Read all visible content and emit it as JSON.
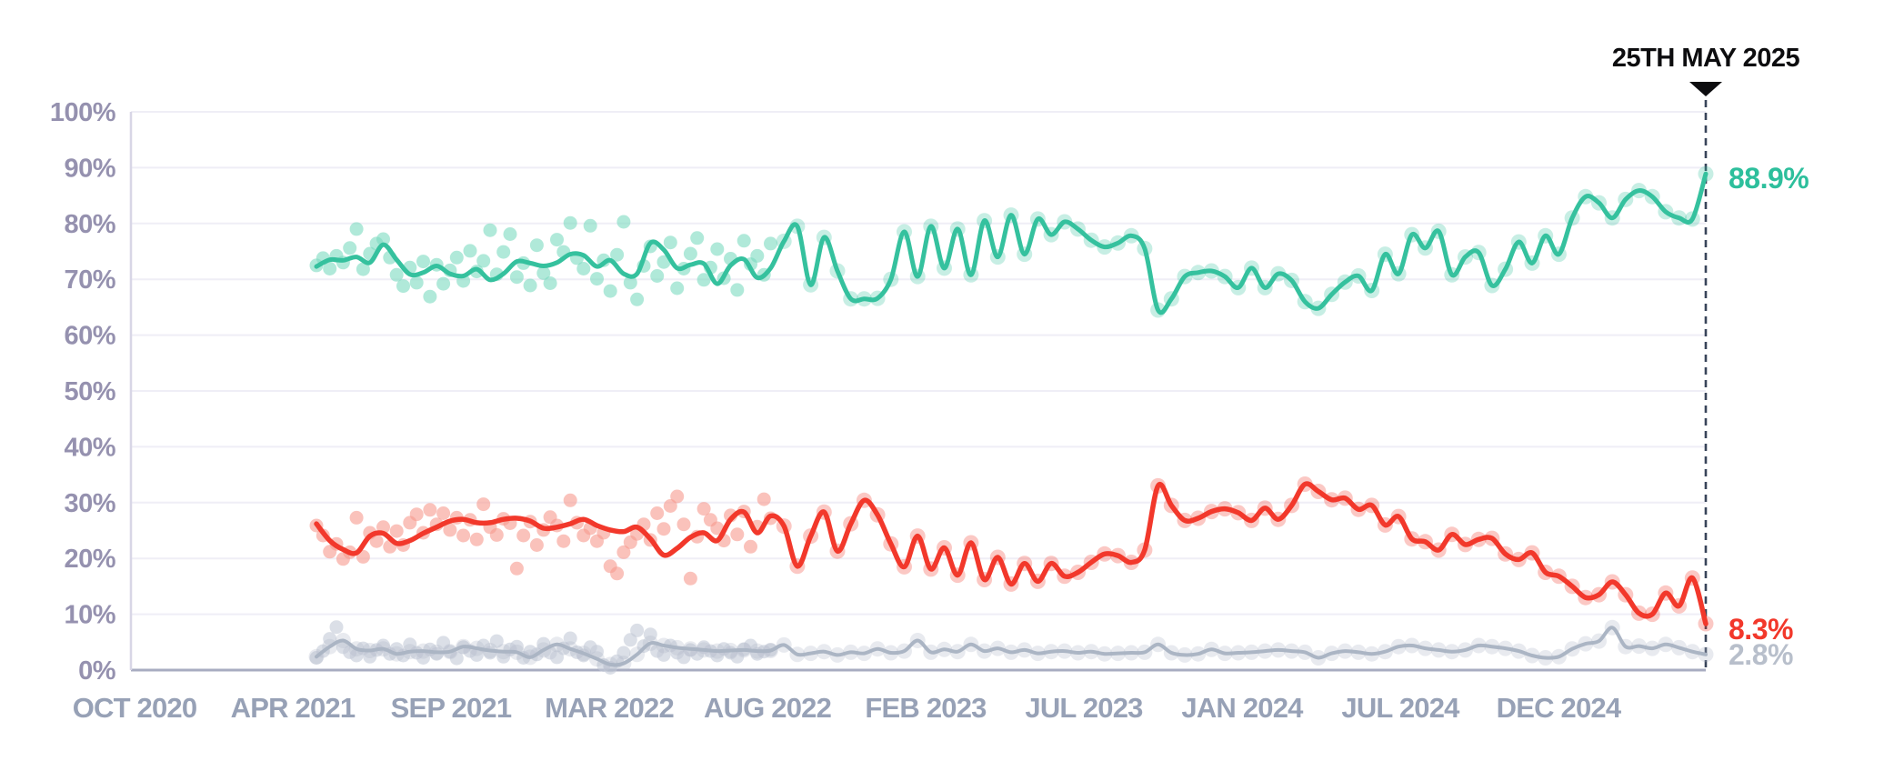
{
  "chart_data": {
    "type": "line",
    "title": "",
    "xlabel": "",
    "ylabel": "",
    "ylim": [
      0,
      100
    ],
    "grid": "horizontal",
    "x_ticks": [
      "OCT 2020",
      "APR 2021",
      "SEP 2021",
      "MAR 2022",
      "AUG 2022",
      "FEB 2023",
      "JUL 2023",
      "JAN 2024",
      "JUL 2024",
      "DEC 2024"
    ],
    "y_ticks": [
      "0%",
      "10%",
      "20%",
      "30%",
      "40%",
      "50%",
      "60%",
      "70%",
      "80%",
      "90%",
      "100%"
    ],
    "annotation": {
      "label": "25TH MAY 2025"
    },
    "series": [
      {
        "name": "teal-series",
        "color": "#35C19E",
        "scatter_color": "#7BDABF",
        "end_label": "88.9%",
        "end_label_color": "#2DBF9C",
        "trend": [
          72.3,
          73.5,
          73.4,
          74.0,
          73.0,
          76.2,
          73.5,
          70.9,
          71.2,
          72.4,
          71.0,
          70.6,
          71.8,
          69.9,
          71.0,
          73.2,
          72.9,
          72.4,
          73.0,
          74.5,
          74.3,
          72.3,
          73.4,
          71.0,
          71.0,
          76.5,
          75.3,
          72.0,
          72.6,
          72.8,
          69.2,
          72.5,
          73.6,
          70.3,
          72.0,
          76.8,
          79.5,
          69.0,
          77.5,
          71.5,
          66.5,
          66.5,
          66.6,
          70.0,
          78.5,
          70.5,
          79.5,
          72.0,
          79.0,
          70.8,
          80.5,
          74.0,
          81.5,
          74.5,
          80.8,
          78.0,
          80.3,
          79.0,
          77.0,
          75.8,
          76.5,
          77.8,
          75.5,
          64.5,
          66.5,
          70.5,
          71.2,
          71.5,
          70.5,
          68.5,
          72.0,
          68.5,
          71.0,
          69.8,
          66.0,
          64.8,
          67.3,
          69.5,
          70.6,
          68.0,
          74.5,
          71.0,
          78.0,
          75.6,
          78.6,
          70.8,
          74.0,
          74.8,
          68.9,
          71.8,
          76.7,
          72.9,
          77.8,
          74.5,
          81.0,
          84.8,
          83.7,
          81.0,
          84.3,
          85.9,
          84.8,
          82.1,
          81.0,
          80.8,
          88.9
        ],
        "weekly_scatter": [
          72.5,
          73.8,
          71.9,
          74.2,
          73.0,
          75.6,
          79.0,
          71.8,
          74.6,
          76.4,
          77.2,
          73.9,
          70.8,
          68.8,
          72.1,
          69.4,
          73.2,
          66.9,
          72.6,
          69.2,
          71.6,
          73.9,
          69.7,
          75.1,
          71.4,
          73.3,
          78.8,
          70.9,
          74.9,
          78.1,
          70.4,
          72.9,
          68.9,
          76.1,
          71.1,
          69.3,
          77.1,
          74.9,
          80.1,
          73.8,
          71.9,
          79.6,
          70.1,
          73.4,
          67.9,
          74.4,
          80.3,
          69.4,
          66.4,
          72.4,
          75.9,
          70.6,
          73.1,
          76.6,
          68.4,
          71.9,
          74.6,
          77.4,
          69.9,
          72.1,
          75.4,
          70.2,
          73.7,
          68.1,
          76.9,
          72.7,
          74.2,
          70.8,
          76.4
        ]
      },
      {
        "name": "red-series",
        "color": "#F2382B",
        "scatter_color": "#F7998E",
        "end_label": "8.3%",
        "end_label_color": "#F2382B",
        "trend": [
          26.2,
          23.2,
          21.6,
          21.0,
          24.0,
          24.5,
          22.7,
          23.2,
          24.5,
          25.6,
          26.7,
          27.0,
          26.4,
          26.4,
          27.0,
          27.2,
          26.7,
          25.4,
          25.6,
          26.2,
          27.0,
          25.9,
          25.1,
          24.8,
          25.6,
          23.5,
          20.6,
          21.8,
          23.8,
          24.6,
          23.2,
          27.0,
          28.3,
          24.6,
          27.6,
          25.8,
          18.6,
          24.0,
          28.3,
          21.3,
          26.2,
          30.4,
          27.8,
          22.6,
          18.5,
          24.0,
          18.1,
          21.9,
          17.0,
          22.8,
          16.2,
          20.2,
          15.4,
          19.1,
          15.9,
          19.1,
          16.8,
          17.5,
          19.3,
          20.8,
          20.5,
          19.3,
          21.5,
          33.0,
          29.5,
          26.8,
          27.2,
          28.4,
          28.9,
          28.2,
          26.8,
          29.0,
          27.0,
          29.5,
          33.3,
          32.0,
          30.5,
          30.8,
          28.8,
          29.5,
          26.0,
          27.5,
          23.5,
          23.0,
          21.5,
          24.3,
          22.5,
          23.4,
          23.6,
          20.8,
          19.8,
          21.0,
          17.5,
          16.8,
          15.0,
          13.0,
          13.5,
          15.8,
          13.5,
          10.2,
          10.0,
          13.8,
          11.5,
          16.5,
          8.3
        ],
        "weekly_scatter": [
          25.9,
          24.1,
          21.2,
          22.6,
          19.9,
          21.1,
          27.3,
          20.3,
          24.6,
          23.1,
          25.6,
          22.1,
          24.9,
          22.4,
          26.4,
          27.9,
          24.6,
          28.7,
          26.1,
          28.1,
          25.1,
          27.3,
          24.1,
          26.9,
          23.4,
          29.7,
          25.6,
          24.2,
          27.1,
          26.3,
          18.2,
          24.1,
          26.6,
          22.4,
          25.1,
          27.4,
          25.9,
          23.1,
          30.4,
          26.4,
          24.1,
          25.4,
          23.1,
          24.6,
          18.6,
          17.3,
          21.1,
          22.9,
          24.4,
          26.1,
          23.3,
          28.1,
          25.3,
          29.4,
          31.1,
          26.1,
          16.4,
          23.9,
          28.9,
          26.9,
          25.4,
          23.2,
          27.7,
          24.3,
          28.4,
          22.1,
          25.7,
          30.6,
          27.2
        ]
      },
      {
        "name": "gray-series",
        "color": "#ABB5C4",
        "scatter_color": "#C3CAD7",
        "end_label": "2.8%",
        "end_label_color": "#B8BFCB",
        "trend": [
          2.4,
          4.2,
          5.3,
          3.8,
          3.5,
          3.8,
          2.9,
          3.3,
          3.4,
          3.2,
          3.3,
          4.2,
          3.9,
          3.5,
          3.3,
          3.2,
          2.3,
          3.6,
          4.6,
          3.8,
          3.0,
          2.0,
          1.0,
          1.2,
          2.8,
          4.8,
          4.4,
          4.0,
          3.8,
          3.6,
          3.4,
          3.5,
          3.6,
          3.4,
          3.5,
          4.5,
          2.8,
          3.0,
          3.3,
          2.7,
          3.2,
          3.0,
          3.8,
          3.1,
          3.4,
          5.3,
          3.2,
          3.7,
          3.3,
          4.6,
          3.4,
          3.9,
          3.2,
          3.6,
          3.0,
          3.3,
          3.4,
          3.1,
          3.3,
          2.9,
          3.0,
          3.1,
          3.2,
          4.6,
          3.1,
          2.7,
          2.9,
          3.7,
          3.0,
          3.1,
          3.2,
          3.4,
          3.6,
          3.4,
          3.2,
          2.2,
          3.0,
          3.4,
          3.2,
          2.9,
          3.3,
          4.2,
          4.4,
          3.9,
          3.6,
          3.3,
          3.6,
          4.4,
          4.2,
          3.9,
          3.4,
          2.6,
          2.2,
          2.4,
          3.8,
          4.7,
          5.2,
          7.6,
          4.2,
          4.3,
          3.9,
          4.6,
          4.0,
          3.3,
          2.8
        ],
        "weekly_scatter": [
          2.2,
          3.4,
          5.6,
          7.7,
          4.1,
          3.2,
          2.6,
          3.9,
          2.4,
          3.6,
          4.4,
          2.9,
          3.8,
          2.6,
          4.6,
          3.1,
          2.2,
          3.7,
          2.9,
          4.9,
          3.3,
          2.1,
          4.1,
          3.4,
          2.7,
          4.4,
          3.1,
          5.2,
          2.4,
          3.7,
          4.2,
          2.2,
          3.3,
          2.8,
          4.7,
          3.1,
          2.3,
          3.9,
          5.7,
          3.2,
          2.6,
          4.1,
          3.3,
          0.9,
          0.4,
          1.6,
          3.1,
          5.4,
          7.1,
          4.3,
          6.4,
          3.4,
          2.7,
          4.4,
          3.1,
          2.3,
          3.6,
          2.9,
          4.1,
          3.4,
          2.6,
          3.8,
          3.1,
          2.4,
          3.7,
          4.4,
          2.9,
          3.3,
          3.6
        ]
      }
    ]
  },
  "colors": {
    "background": "#FFFFFF",
    "grid": "#EFEEF6",
    "axis_line": "#D8D6E6",
    "baseline": "#A8ACC1",
    "y_tick_text": "#9591AF",
    "x_tick_text": "#97A1B6",
    "dashed_line": "#39455A",
    "annotation_marker": "#0D0D0F",
    "annotation_text": "#0D0D0F"
  }
}
